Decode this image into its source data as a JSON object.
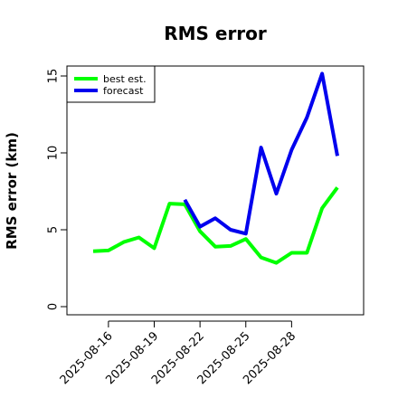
{
  "chart_data": {
    "type": "line",
    "title": "RMS error",
    "xlabel": "",
    "ylabel": "RMS error (km)",
    "ylim": [
      0,
      15
    ],
    "yticks": [
      0,
      5,
      10,
      15
    ],
    "xticks": [
      "2025-08-16",
      "2025-08-19",
      "2025-08-22",
      "2025-08-25",
      "2025-08-28"
    ],
    "grid": false,
    "legend_position": "top-left",
    "series": [
      {
        "name": "best est.",
        "color": "#00ff00",
        "points": [
          {
            "x": "2025-08-15",
            "y": 3.6
          },
          {
            "x": "2025-08-16",
            "y": 3.65
          },
          {
            "x": "2025-08-17",
            "y": 4.2
          },
          {
            "x": "2025-08-18",
            "y": 4.5
          },
          {
            "x": "2025-08-19",
            "y": 3.8
          },
          {
            "x": "2025-08-20",
            "y": 6.7
          },
          {
            "x": "2025-08-21",
            "y": 6.65
          },
          {
            "x": "2025-08-22",
            "y": 4.9
          },
          {
            "x": "2025-08-23",
            "y": 3.9
          },
          {
            "x": "2025-08-24",
            "y": 3.95
          },
          {
            "x": "2025-08-25",
            "y": 4.4
          },
          {
            "x": "2025-08-26",
            "y": 3.2
          },
          {
            "x": "2025-08-27",
            "y": 2.85
          },
          {
            "x": "2025-08-28",
            "y": 3.5
          },
          {
            "x": "2025-08-29",
            "y": 3.5
          },
          {
            "x": "2025-08-30",
            "y": 6.4
          },
          {
            "x": "2025-08-31",
            "y": 7.75
          }
        ]
      },
      {
        "name": "forecast",
        "color": "#0000ee",
        "points": [
          {
            "x": "2025-08-21",
            "y": 6.95
          },
          {
            "x": "2025-08-22",
            "y": 5.2
          },
          {
            "x": "2025-08-23",
            "y": 5.75
          },
          {
            "x": "2025-08-24",
            "y": 5.0
          },
          {
            "x": "2025-08-25",
            "y": 4.75
          },
          {
            "x": "2025-08-26",
            "y": 10.35
          },
          {
            "x": "2025-08-27",
            "y": 7.35
          },
          {
            "x": "2025-08-28",
            "y": 10.2
          },
          {
            "x": "2025-08-29",
            "y": 12.3
          },
          {
            "x": "2025-08-30",
            "y": 15.15
          },
          {
            "x": "2025-08-31",
            "y": 9.8
          }
        ]
      }
    ]
  }
}
